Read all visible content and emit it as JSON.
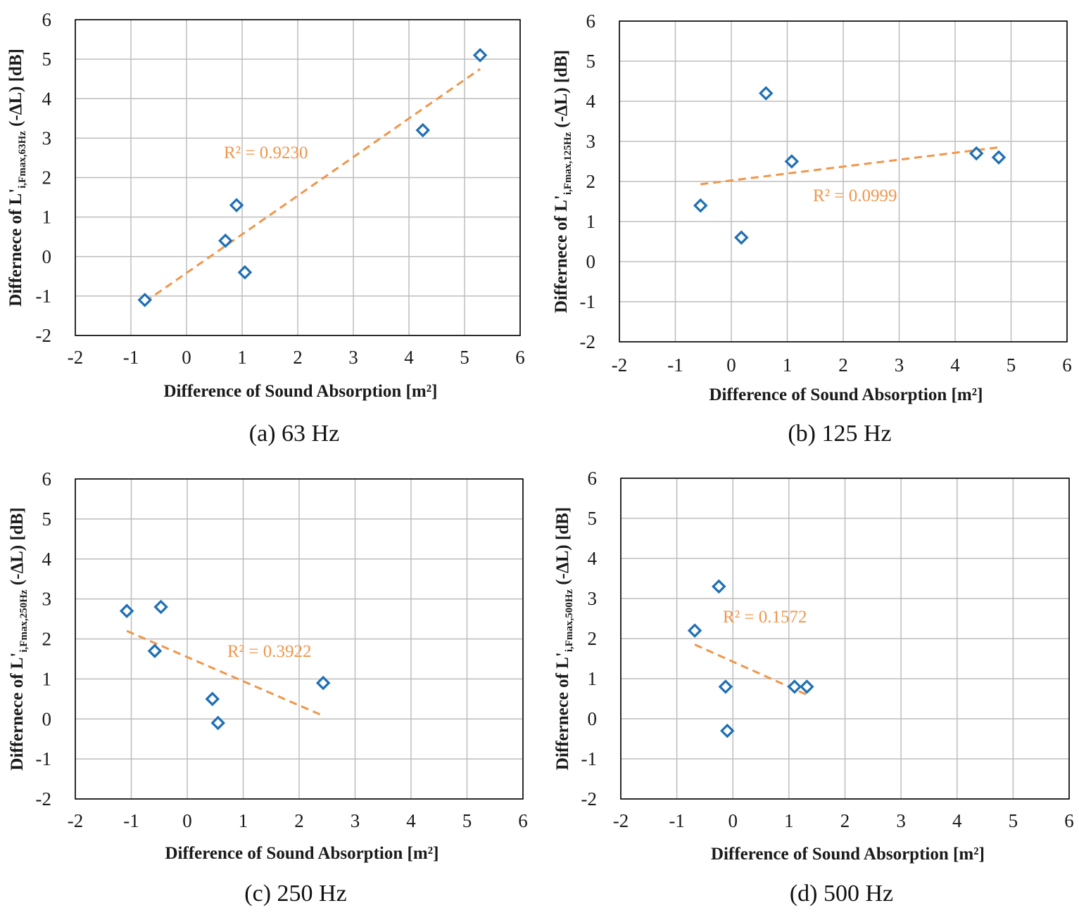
{
  "colors": {
    "marker": "#1f6fb5",
    "trendline": "#f0964a",
    "grid": "#bdbdbd",
    "frame": "#000000",
    "text": "#1a1a1a"
  },
  "chart_data": [
    {
      "type": "scatter",
      "caption": "(a) 63 Hz",
      "xlabel": "Difference of Sound Absorption [m²]",
      "ylabel": {
        "main": "Differnece of L'",
        "sub": "i,Fmax,63Hz",
        "rest": " (-ΔL) [dB]"
      },
      "xlim": [
        -2,
        6
      ],
      "ylim": [
        -2,
        6
      ],
      "xticks": [
        "-2",
        "-1",
        "0",
        "1",
        "2",
        "3",
        "4",
        "5",
        "6"
      ],
      "yticks": [
        "-2",
        "-1",
        "0",
        "1",
        "2",
        "3",
        "4",
        "5",
        "6"
      ],
      "grid": true,
      "points": [
        {
          "x": -0.75,
          "y": -1.1
        },
        {
          "x": 0.7,
          "y": 0.4
        },
        {
          "x": 0.9,
          "y": 1.3
        },
        {
          "x": 1.05,
          "y": -0.4
        },
        {
          "x": 4.25,
          "y": 3.2
        },
        {
          "x": 5.28,
          "y": 5.1
        }
      ],
      "trendline": {
        "from": {
          "x": -0.75,
          "y": -1.15
        },
        "to": {
          "x": 5.28,
          "y": 4.75
        },
        "label": "R² = 0.9230"
      }
    },
    {
      "type": "scatter",
      "caption": "(b) 125 Hz",
      "xlabel": "Difference of Sound Absorption [m²]",
      "ylabel": {
        "main": "Differnece of L'",
        "sub": "i,Fmax,125Hz",
        "rest": " (-ΔL) [dB]"
      },
      "xlim": [
        -2,
        6
      ],
      "ylim": [
        -2,
        6
      ],
      "xticks": [
        "-2",
        "-1",
        "0",
        "1",
        "2",
        "3",
        "4",
        "5",
        "6"
      ],
      "yticks": [
        "-2",
        "-1",
        "0",
        "1",
        "2",
        "3",
        "4",
        "5",
        "6"
      ],
      "grid": true,
      "points": [
        {
          "x": -0.55,
          "y": 1.4
        },
        {
          "x": 0.18,
          "y": 0.6
        },
        {
          "x": 0.62,
          "y": 4.2
        },
        {
          "x": 1.08,
          "y": 2.5
        },
        {
          "x": 4.38,
          "y": 2.7
        },
        {
          "x": 4.78,
          "y": 2.6
        }
      ],
      "trendline": {
        "from": {
          "x": -0.55,
          "y": 1.93
        },
        "to": {
          "x": 4.78,
          "y": 2.85
        },
        "label": "R² = 0.0999"
      }
    },
    {
      "type": "scatter",
      "caption": "(c) 250 Hz",
      "xlabel": "Difference of Sound Absorption [m²]",
      "ylabel": {
        "main": "Differnece of L'",
        "sub": "i,Fmax,250Hz",
        "rest": " (-ΔL) [dB]"
      },
      "xlim": [
        -2,
        6
      ],
      "ylim": [
        -2,
        6
      ],
      "xticks": [
        "-2",
        "-1",
        "0",
        "1",
        "2",
        "3",
        "4",
        "5",
        "6"
      ],
      "yticks": [
        "-2",
        "-1",
        "0",
        "1",
        "2",
        "3",
        "4",
        "5",
        "6"
      ],
      "grid": true,
      "points": [
        {
          "x": -1.08,
          "y": 2.7
        },
        {
          "x": -0.47,
          "y": 2.8
        },
        {
          "x": -0.58,
          "y": 1.7
        },
        {
          "x": 0.45,
          "y": 0.5
        },
        {
          "x": 0.55,
          "y": -0.1
        },
        {
          "x": 2.43,
          "y": 0.9
        }
      ],
      "trendline": {
        "from": {
          "x": -1.08,
          "y": 2.2
        },
        "to": {
          "x": 2.43,
          "y": 0.08
        },
        "label": "R² = 0.3922"
      }
    },
    {
      "type": "scatter",
      "caption": "(d) 500 Hz",
      "xlabel": "Difference of Sound Absorption [m²]",
      "ylabel": {
        "main": "Differnece of L'",
        "sub": "i,Fmax,500Hz",
        "rest": " (-ΔL) [dB]"
      },
      "xlim": [
        -2,
        6
      ],
      "ylim": [
        -2,
        6
      ],
      "xticks": [
        "-2",
        "-1",
        "0",
        "1",
        "2",
        "3",
        "4",
        "5",
        "6"
      ],
      "yticks": [
        "-2",
        "-1",
        "0",
        "1",
        "2",
        "3",
        "4",
        "5",
        "6"
      ],
      "grid": true,
      "points": [
        {
          "x": -0.68,
          "y": 2.2
        },
        {
          "x": -0.25,
          "y": 3.3
        },
        {
          "x": -0.13,
          "y": 0.8
        },
        {
          "x": -0.1,
          "y": -0.3
        },
        {
          "x": 1.1,
          "y": 0.8
        },
        {
          "x": 1.32,
          "y": 0.8
        }
      ],
      "trendline": {
        "from": {
          "x": -0.68,
          "y": 1.85
        },
        "to": {
          "x": 1.32,
          "y": 0.6
        },
        "label": "R² = 0.1572"
      }
    }
  ]
}
